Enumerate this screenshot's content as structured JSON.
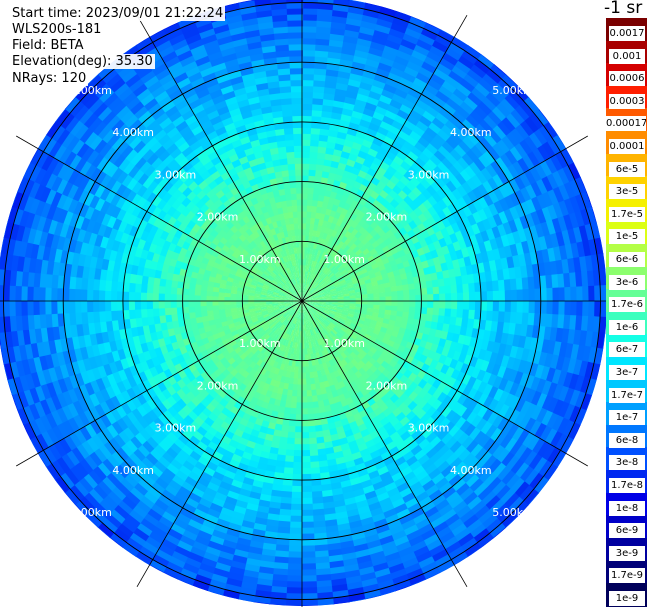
{
  "info": {
    "start_time": "Start time: 2023/09/01 21:22:24",
    "instrument": "WLS200s-181",
    "field": "Field: BETA",
    "elevation": "Elevation(deg): 35.30",
    "nrays": "NRays: 120"
  },
  "colorbar": {
    "unit_label": "-1 sr",
    "labels": [
      "0.0017",
      "0.001",
      "0.0006",
      "0.0003",
      "0.00017",
      "0.0001",
      "6e-5",
      "3e-5",
      "1.7e-5",
      "1e-5",
      "6e-6",
      "3e-6",
      "1.7e-6",
      "1e-6",
      "6e-7",
      "3e-7",
      "1.7e-7",
      "1e-7",
      "6e-8",
      "3e-8",
      "1.7e-8",
      "1e-8",
      "6e-9",
      "3e-9",
      "1.7e-9",
      "1e-9"
    ],
    "colors": [
      "#7a0000",
      "#a80000",
      "#d40000",
      "#ff1e00",
      "#ff5a00",
      "#ff8c00",
      "#ffb400",
      "#ffd200",
      "#f5f000",
      "#dcff14",
      "#b4ff46",
      "#8cff6e",
      "#64ff96",
      "#3cffbe",
      "#14ffe6",
      "#00e6ff",
      "#00c8ff",
      "#00a0ff",
      "#0078ff",
      "#0050ff",
      "#0028f0",
      "#0000e6",
      "#0000c8",
      "#0000a0",
      "#000078",
      "#00005a"
    ]
  },
  "chart_data": {
    "type": "heatmap",
    "projection": "polar (PPI scan)",
    "field": "BETA",
    "units": "-1 sr",
    "elevation_deg": 35.3,
    "n_rays": 120,
    "range_rings_km": [
      1,
      2,
      3,
      4,
      5
    ],
    "ring_labels": [
      "1.00km",
      "2.00km",
      "3.00km",
      "4.00km",
      "5.00km"
    ],
    "azimuth_spokes_deg": [
      0,
      30,
      60,
      90,
      120,
      150,
      180,
      210,
      240,
      270,
      300,
      330
    ],
    "max_range_km": 5.0,
    "color_scale": "log",
    "value_range": [
      1e-09,
      0.0017
    ],
    "radial_profile": [
      {
        "range_km": 0.5,
        "beta": 1.7e-06
      },
      {
        "range_km": 1.0,
        "beta": 1.7e-06
      },
      {
        "range_km": 1.5,
        "beta": 1.7e-06
      },
      {
        "range_km": 2.0,
        "beta": 1e-06
      },
      {
        "range_km": 2.5,
        "beta": 6e-07
      },
      {
        "range_km": 3.0,
        "beta": 3e-07
      },
      {
        "range_km": 3.5,
        "beta": 1.7e-07
      },
      {
        "range_km": 4.0,
        "beta": 1e-07
      },
      {
        "range_km": 4.5,
        "beta": 6e-08
      },
      {
        "range_km": 5.0,
        "beta": 3e-08
      }
    ]
  }
}
